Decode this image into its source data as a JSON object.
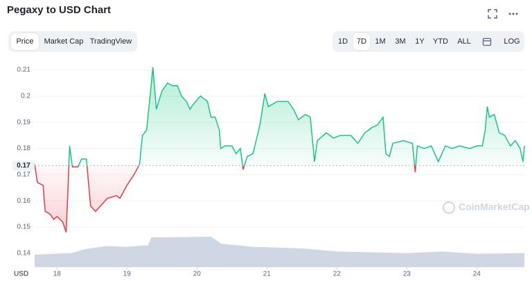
{
  "header": {
    "title": "Pegaxy to USD Chart"
  },
  "tabs": [
    "Price",
    "Market Cap",
    "TradingView"
  ],
  "ranges": [
    "1D",
    "7D",
    "1M",
    "3M",
    "1Y",
    "YTD",
    "ALL"
  ],
  "log_button": "LOG",
  "watermark": "CoinMarketCap",
  "chart_data": {
    "type": "area",
    "y_unit_label": "USD",
    "x": [
      17.68,
      17.72,
      17.8,
      17.83,
      17.9,
      17.95,
      18.0,
      18.08,
      18.13,
      18.15,
      18.18,
      18.22,
      18.3,
      18.35,
      18.42,
      18.45,
      18.48,
      18.55,
      18.62,
      18.72,
      18.85,
      18.9,
      19.0,
      19.1,
      19.18,
      19.22,
      19.28,
      19.33,
      19.37,
      19.42,
      19.5,
      19.58,
      19.65,
      19.72,
      19.78,
      19.85,
      19.9,
      19.95,
      20.05,
      20.1,
      20.15,
      20.2,
      20.26,
      20.32,
      20.34,
      20.4,
      20.5,
      20.56,
      20.62,
      20.66,
      20.72,
      20.8,
      20.9,
      20.97,
      21.02,
      21.15,
      21.3,
      21.38,
      21.45,
      21.55,
      21.62,
      21.68,
      21.72,
      21.85,
      21.95,
      22.05,
      22.2,
      22.3,
      22.4,
      22.5,
      22.58,
      22.66,
      22.7,
      22.75,
      22.8,
      22.95,
      23.08,
      23.12,
      23.15,
      23.25,
      23.35,
      23.45,
      23.55,
      23.65,
      23.75,
      23.9,
      24.0,
      24.08,
      24.12,
      24.15,
      24.18,
      24.25,
      24.32,
      24.4,
      24.48,
      24.55,
      24.62,
      24.66,
      24.68
    ],
    "values": [
      0.174,
      0.167,
      0.166,
      0.156,
      0.155,
      0.153,
      0.154,
      0.152,
      0.148,
      0.16,
      0.181,
      0.173,
      0.173,
      0.176,
      0.176,
      0.167,
      0.158,
      0.156,
      0.158,
      0.161,
      0.162,
      0.161,
      0.166,
      0.17,
      0.174,
      0.185,
      0.187,
      0.2,
      0.211,
      0.195,
      0.202,
      0.205,
      0.204,
      0.204,
      0.2,
      0.198,
      0.195,
      0.197,
      0.2,
      0.199,
      0.198,
      0.192,
      0.192,
      0.187,
      0.18,
      0.181,
      0.181,
      0.178,
      0.18,
      0.172,
      0.177,
      0.178,
      0.189,
      0.201,
      0.196,
      0.198,
      0.198,
      0.195,
      0.191,
      0.193,
      0.192,
      0.175,
      0.183,
      0.186,
      0.184,
      0.185,
      0.185,
      0.182,
      0.186,
      0.188,
      0.189,
      0.192,
      0.178,
      0.177,
      0.182,
      0.183,
      0.182,
      0.171,
      0.181,
      0.18,
      0.181,
      0.175,
      0.181,
      0.18,
      0.181,
      0.18,
      0.181,
      0.181,
      0.187,
      0.196,
      0.192,
      0.193,
      0.186,
      0.185,
      0.181,
      0.183,
      0.18,
      0.175,
      0.181
    ],
    "baseline": {
      "value": 0.1735,
      "label": "0.17"
    },
    "up_color": "#16c784",
    "down_color": "#ea3943",
    "xlim": [
      17.68,
      24.68
    ],
    "ylim": [
      0.1347,
      0.2124
    ],
    "xticks": [
      18,
      19,
      20,
      21,
      22,
      23,
      24
    ],
    "yticks": [
      0.14,
      0.15,
      0.16,
      0.17,
      0.18,
      0.19,
      0.2,
      0.21
    ],
    "grid": true,
    "volume": {
      "x": [
        17.68,
        18.2,
        18.4,
        18.7,
        19.0,
        19.3,
        19.35,
        20.2,
        20.35,
        20.8,
        21.5,
        22.0,
        23.0,
        23.5,
        24.0,
        24.68
      ],
      "values": [
        16,
        18,
        23,
        27,
        26,
        28,
        38,
        39,
        30,
        26,
        24,
        20,
        18,
        20,
        17,
        18
      ],
      "color": "#cfd6e4"
    }
  }
}
